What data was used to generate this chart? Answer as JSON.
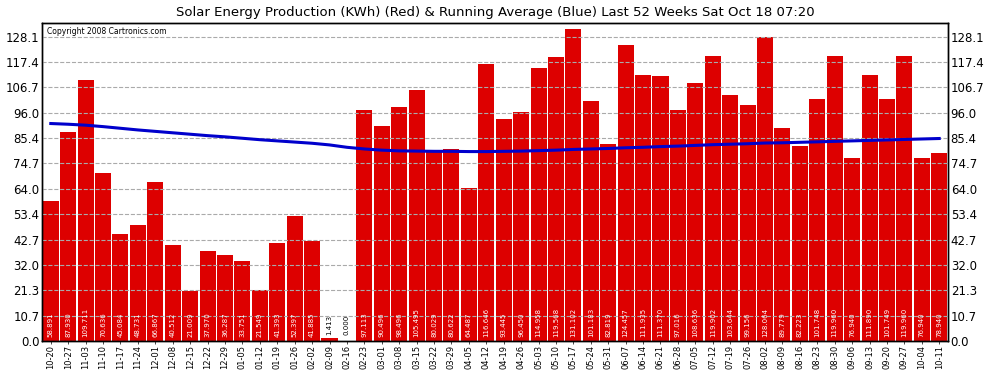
{
  "title": "Solar Energy Production (KWh) (Red) & Running Average (Blue) Last 52 Weeks Sat Oct 18 07:20",
  "copyright": "Copyright 2008 Cartronics.com",
  "bar_color": "#dd0000",
  "line_color": "#0000cc",
  "background_color": "#ffffff",
  "grid_color": "#aaaaaa",
  "ylim": [
    0,
    134.0
  ],
  "yticks": [
    0.0,
    10.7,
    21.3,
    32.0,
    42.7,
    53.4,
    64.0,
    74.7,
    85.4,
    96.0,
    106.7,
    117.4,
    128.1
  ],
  "categories": [
    "10-20",
    "10-27",
    "11-03",
    "11-10",
    "11-17",
    "11-24",
    "12-01",
    "12-08",
    "12-15",
    "12-22",
    "12-29",
    "01-05",
    "01-12",
    "01-19",
    "01-26",
    "02-02",
    "02-09",
    "02-16",
    "02-23",
    "03-01",
    "03-08",
    "03-15",
    "03-22",
    "03-29",
    "04-05",
    "04-12",
    "04-19",
    "04-26",
    "05-03",
    "05-10",
    "05-17",
    "05-24",
    "05-31",
    "06-07",
    "06-14",
    "06-21",
    "06-28",
    "07-05",
    "07-12",
    "07-19",
    "07-26",
    "08-02",
    "08-09",
    "08-16",
    "08-23",
    "08-30",
    "09-06",
    "09-13",
    "09-20",
    "09-27",
    "10-04",
    "10-11"
  ],
  "values": [
    58.891,
    87.93,
    109.711,
    70.636,
    45.084,
    48.731,
    66.867,
    40.512,
    21.009,
    37.97,
    36.287,
    33.751,
    21.549,
    41.393,
    52.397,
    41.885,
    1.413,
    0.0,
    97.113,
    90.496,
    98.496,
    105.495,
    80.029,
    80.622,
    64.487,
    116.646,
    93.445,
    96.45,
    114.958,
    119.568,
    131.102,
    101.183,
    82.819,
    124.457,
    111.935,
    111.37,
    97.016,
    108.636,
    119.902,
    103.644,
    99.156,
    128.064,
    89.779,
    82.223,
    101.748,
    119.96,
    76.94,
    111.89,
    101.749,
    119.96,
    76.94,
    78.94
  ],
  "running_avg": [
    91.5,
    91.2,
    90.8,
    90.2,
    89.5,
    88.8,
    88.2,
    87.6,
    87.0,
    86.4,
    85.9,
    85.3,
    84.7,
    84.2,
    83.7,
    83.2,
    82.5,
    81.5,
    80.8,
    80.3,
    80.0,
    79.9,
    79.8,
    79.8,
    79.7,
    79.7,
    79.8,
    79.9,
    80.1,
    80.3,
    80.6,
    80.8,
    81.0,
    81.3,
    81.5,
    81.8,
    82.0,
    82.3,
    82.6,
    82.8,
    83.0,
    83.3,
    83.4,
    83.6,
    83.8,
    84.0,
    84.2,
    84.4,
    84.6,
    84.8,
    85.0,
    85.2
  ],
  "label_fontsize": 5.0,
  "xlabel_fontsize": 6.0,
  "ylabel_fontsize": 8.5,
  "title_fontsize": 9.5
}
